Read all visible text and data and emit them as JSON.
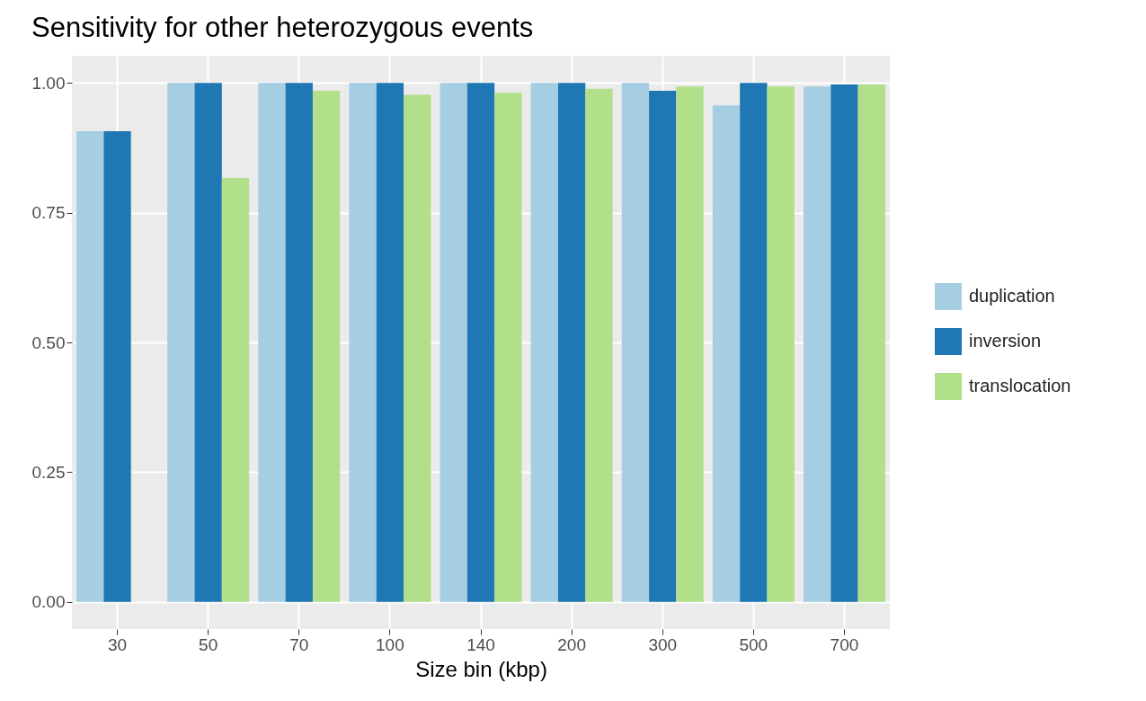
{
  "chart_data": {
    "type": "bar",
    "title": "Sensitivity for other heterozygous events",
    "xlabel": "Size bin (kbp)",
    "categories": [
      "30",
      "50",
      "70",
      "100",
      "140",
      "200",
      "300",
      "500",
      "700"
    ],
    "series": [
      {
        "name": "duplication",
        "color": "#a6cee3",
        "values": [
          0.907,
          1.0,
          1.0,
          1.0,
          1.0,
          1.0,
          1.0,
          0.957,
          0.993
        ]
      },
      {
        "name": "inversion",
        "color": "#1f78b4",
        "values": [
          0.907,
          1.0,
          1.0,
          1.0,
          1.0,
          1.0,
          0.985,
          1.0,
          0.997
        ]
      },
      {
        "name": "translocation",
        "color": "#b2df8a",
        "values": [
          null,
          0.817,
          0.985,
          0.977,
          0.981,
          0.989,
          0.993,
          0.993,
          0.997
        ]
      }
    ],
    "ylim": [
      -0.0525,
      1.0525
    ],
    "yticks": [
      {
        "value": 0,
        "label": "0.00"
      },
      {
        "value": 0.25,
        "label": "0.25"
      },
      {
        "value": 0.5,
        "label": "0.50"
      },
      {
        "value": 0.75,
        "label": "0.75"
      },
      {
        "value": 1,
        "label": "1.00"
      }
    ],
    "grid": true,
    "legend": "right"
  }
}
